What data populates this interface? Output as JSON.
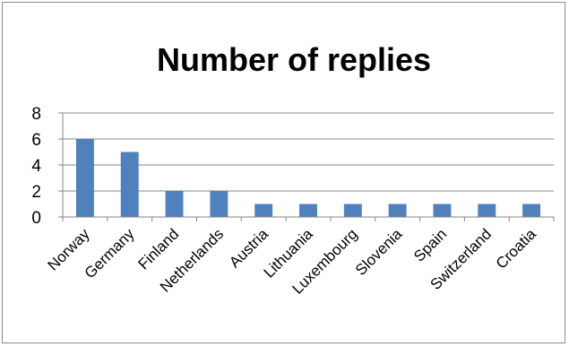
{
  "chart_data": {
    "type": "bar",
    "title": "Number of replies",
    "xlabel": "",
    "ylabel": "",
    "categories": [
      "Norway",
      "Germany",
      "Finland",
      "Netherlands",
      "Austria",
      "Lithuania",
      "Luxembourg",
      "Slovenia",
      "Spain",
      "Switzerland",
      "Croatia"
    ],
    "values": [
      6,
      5,
      2,
      2,
      1,
      1,
      1,
      1,
      1,
      1,
      1
    ],
    "ylim": [
      0,
      8
    ],
    "yticks": [
      0,
      2,
      4,
      6,
      8
    ],
    "grid": true,
    "legend": "none",
    "bar_color": "#4f81bd"
  }
}
